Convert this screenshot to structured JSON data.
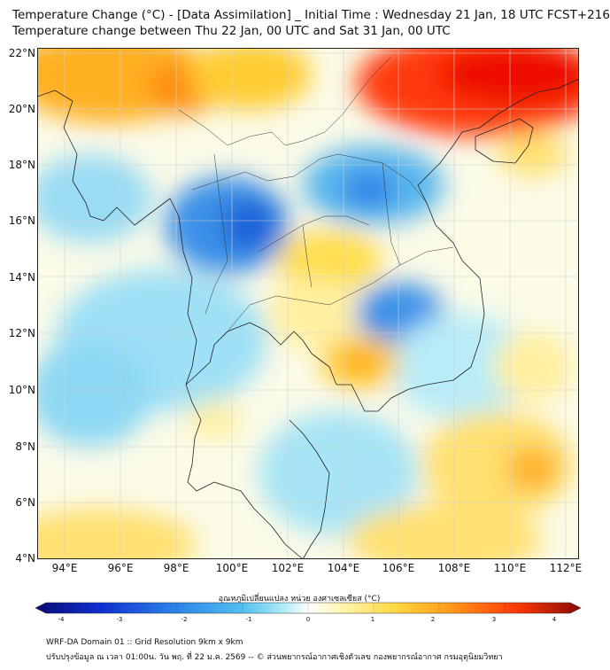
{
  "header": {
    "line1": "Temperature Change (°C) - [Data Assimilation] _ Initial Time : Wednesday 21 Jan, 18 UTC FCST+216",
    "line2": "Temperature change between Thu 22 Jan, 00 UTC and Sat 31 Jan, 00 UTC"
  },
  "map": {
    "lat_labels": [
      "22°N",
      "20°N",
      "18°N",
      "16°N",
      "14°N",
      "12°N",
      "10°N",
      "8°N",
      "6°N",
      "4°N"
    ],
    "lon_labels": [
      "94°E",
      "96°E",
      "98°E",
      "100°E",
      "102°E",
      "104°E",
      "106°E",
      "108°E",
      "110°E",
      "112°E"
    ],
    "lon_range": [
      93,
      112.5
    ],
    "lat_range": [
      4,
      22.3
    ]
  },
  "colorbar": {
    "title": "อุณหภูมิเปลี่ยนแปลง หน่วย องศาเซลเซียส (°C)",
    "ticks": [
      "-4",
      "-3",
      "-2",
      "-1",
      "0",
      "1",
      "2",
      "3",
      "4"
    ],
    "colors": [
      "#0a0a78",
      "#1030d0",
      "#2a80e8",
      "#52c0f0",
      "#b8ecf8",
      "#ffffff",
      "#fff6b0",
      "#ffd840",
      "#ff9a18",
      "#ff3a08",
      "#8c0a00"
    ]
  },
  "footer": {
    "line1": "WRF-DA Domain 01 :: Grid Resolution 9km x 9km",
    "line2": "ปรับปรุงข้อมูล ณ เวลา 01:00น. วัน พฤ. ที่ 22 ม.ค. 2569 -- © ส่วนพยากรณ์อากาศเชิงตัวเลข กองพยากรณ์อากาศ กรมอุตุนิยมวิทยา"
  }
}
